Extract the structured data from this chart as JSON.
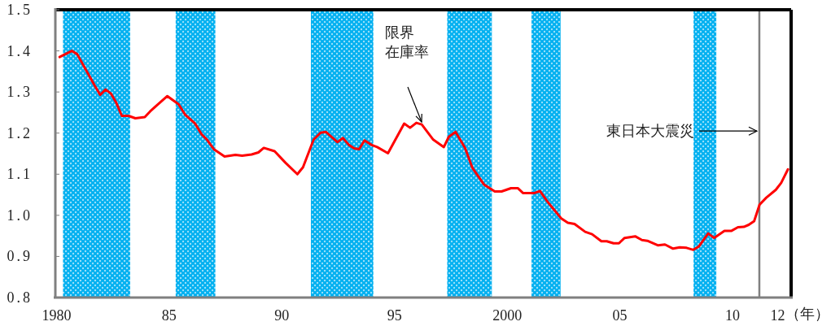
{
  "chart_data": {
    "type": "line",
    "xlabel": "（年）",
    "x": [
      1980.14,
      1980.68,
      1980.92,
      1981.69,
      1981.94,
      1982.18,
      1982.42,
      1982.66,
      1982.9,
      1983.2,
      1983.5,
      1983.92,
      1984.16,
      1984.4,
      1984.92,
      1985.42,
      1985.72,
      1986.14,
      1986.44,
      1986.68,
      1986.98,
      1987.46,
      1987.94,
      1988.24,
      1988.66,
      1988.96,
      1989.2,
      1989.68,
      1990.16,
      1990.69,
      1990.94,
      1991.41,
      1991.72,
      1991.95,
      1992.47,
      1992.71,
      1992.98,
      1993.21,
      1993.43,
      1993.67,
      1993.99,
      1994.23,
      1994.71,
      1995.43,
      1995.69,
      1995.97,
      1996.21,
      1996.72,
      1997.19,
      1997.41,
      1997.71,
      1998.13,
      1998.46,
      1998.97,
      1999.45,
      1999.75,
      2000.17,
      2000.47,
      2000.71,
      2001.19,
      2001.46,
      2001.79,
      2002.09,
      2002.39,
      2002.69,
      2002.99,
      2003.46,
      2003.77,
      2004.18,
      2004.42,
      2004.72,
      2004.96,
      2005.21,
      2005.68,
      2005.98,
      2006.22,
      2006.7,
      2007.0,
      2007.36,
      2007.66,
      2007.96,
      2008.26,
      2008.5,
      2008.92,
      2009.18,
      2009.64,
      2009.94,
      2010.24,
      2010.5,
      2010.72,
      2010.96,
      2011.2,
      2011.5,
      2011.92,
      2012.16,
      2012.46
    ],
    "series": [
      {
        "color": "#ff0000",
        "values": [
          1.385,
          1.4,
          1.392,
          1.316,
          1.293,
          1.306,
          1.296,
          1.273,
          1.242,
          1.242,
          1.236,
          1.239,
          1.253,
          1.265,
          1.29,
          1.27,
          1.244,
          1.224,
          1.197,
          1.184,
          1.161,
          1.143,
          1.147,
          1.145,
          1.148,
          1.153,
          1.164,
          1.156,
          1.128,
          1.1,
          1.117,
          1.184,
          1.201,
          1.203,
          1.178,
          1.188,
          1.171,
          1.163,
          1.161,
          1.182,
          1.171,
          1.166,
          1.151,
          1.223,
          1.213,
          1.225,
          1.221,
          1.184,
          1.166,
          1.191,
          1.203,
          1.164,
          1.115,
          1.075,
          1.058,
          1.058,
          1.066,
          1.066,
          1.054,
          1.054,
          1.059,
          1.033,
          1.013,
          0.993,
          0.982,
          0.979,
          0.96,
          0.954,
          0.937,
          0.937,
          0.932,
          0.932,
          0.945,
          0.949,
          0.94,
          0.938,
          0.927,
          0.929,
          0.919,
          0.922,
          0.921,
          0.916,
          0.924,
          0.956,
          0.945,
          0.962,
          0.962,
          0.971,
          0.972,
          0.977,
          0.986,
          1.026,
          1.043,
          1.062,
          1.079,
          1.112
        ]
      }
    ],
    "xlim": [
      1979.95,
      2012.6
    ],
    "xticks": [
      {
        "value": 1980,
        "label": "1980"
      },
      {
        "value": 1985,
        "label": "85"
      },
      {
        "value": 1990,
        "label": "90"
      },
      {
        "value": 1995,
        "label": "95"
      },
      {
        "value": 2000,
        "label": "2000"
      },
      {
        "value": 2005,
        "label": "05"
      },
      {
        "value": 2010,
        "label": "10"
      },
      {
        "value": 2012,
        "label": "12"
      }
    ],
    "ylim": [
      0.8,
      1.5
    ],
    "yticks": [
      {
        "value": 0.8,
        "label": "0.8"
      },
      {
        "value": 0.9,
        "label": "0.9"
      },
      {
        "value": 1.0,
        "label": "1.0"
      },
      {
        "value": 1.1,
        "label": "1.1"
      },
      {
        "value": 1.2,
        "label": "1.2"
      },
      {
        "value": 1.3,
        "label": "1.3"
      },
      {
        "value": 1.4,
        "label": "1.4"
      },
      {
        "value": 1.5,
        "label": "1.5"
      }
    ],
    "bands": [
      {
        "axis": "x",
        "from": 1980.29,
        "to": 1983.27,
        "color": "#00b0f0"
      },
      {
        "axis": "x",
        "from": 1985.29,
        "to": 1987.05,
        "color": "#00b0f0"
      },
      {
        "axis": "x",
        "from": 1991.29,
        "to": 1994.06,
        "color": "#00b0f0"
      },
      {
        "axis": "x",
        "from": 1997.34,
        "to": 1999.32,
        "color": "#00b0f0"
      },
      {
        "axis": "x",
        "from": 2001.08,
        "to": 2002.37,
        "color": "#00b0f0"
      },
      {
        "axis": "x",
        "from": 2008.27,
        "to": 2009.28,
        "color": "#00b0f0"
      }
    ],
    "ref_lines": [
      {
        "axis": "x",
        "value": 2011.19,
        "label": "東日本大震災",
        "color": "#808080"
      }
    ],
    "annotations": [
      "限界在庫率"
    ],
    "grid": false,
    "marker": "none",
    "line_style": "solid"
  }
}
